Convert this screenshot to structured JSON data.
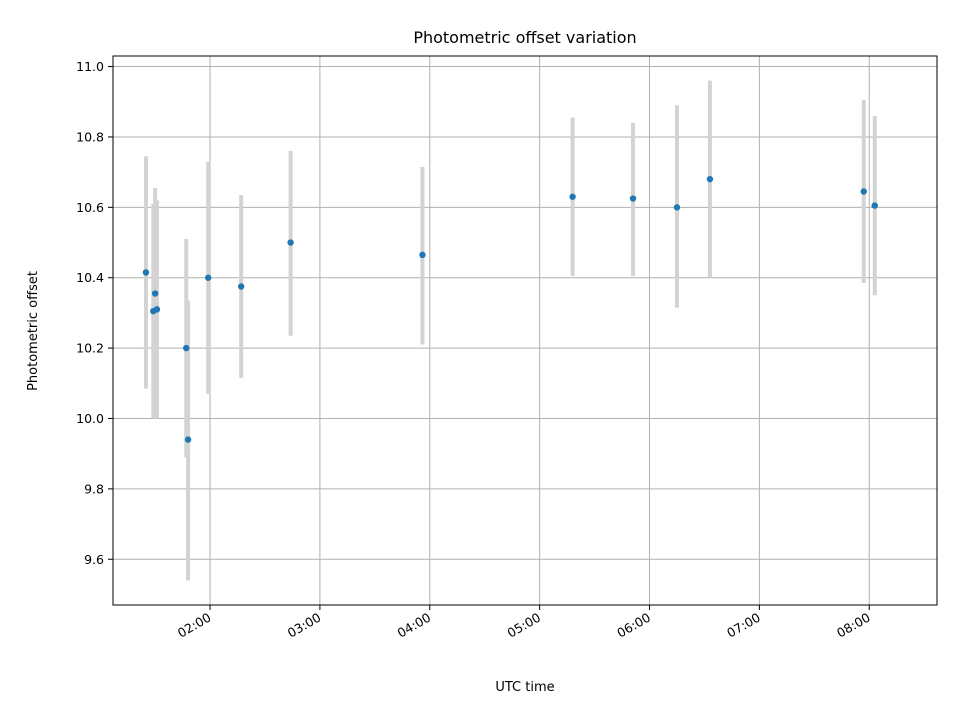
{
  "chart_data": {
    "type": "scatter",
    "title": "Photometric offset variation",
    "xlabel": "UTC time",
    "ylabel": "Photometric offset",
    "grid": true,
    "legend": "none",
    "xlim": [
      "01:07",
      "08:37"
    ],
    "ylim": [
      9.47,
      11.03
    ],
    "x_ticks": [
      "02:00",
      "03:00",
      "04:00",
      "05:00",
      "06:00",
      "07:00",
      "08:00"
    ],
    "y_ticks": [
      "9.6",
      "9.8",
      "10.0",
      "10.2",
      "10.4",
      "10.6",
      "10.8",
      "11.0"
    ],
    "point_color": "#1f77b4",
    "errorbar_color": "#d3d3d3",
    "points": [
      {
        "x": "01:25",
        "y": 10.415,
        "ylow": 10.085,
        "yhigh": 10.745
      },
      {
        "x": "01:29",
        "y": 10.305,
        "ylow": 10.0,
        "yhigh": 10.61
      },
      {
        "x": "01:30",
        "y": 10.355,
        "ylow": 10.0,
        "yhigh": 10.655
      },
      {
        "x": "01:31",
        "y": 10.31,
        "ylow": 10.0,
        "yhigh": 10.62
      },
      {
        "x": "01:47",
        "y": 10.2,
        "ylow": 9.89,
        "yhigh": 10.51
      },
      {
        "x": "01:48",
        "y": 9.94,
        "ylow": 9.54,
        "yhigh": 10.335
      },
      {
        "x": "01:59",
        "y": 10.4,
        "ylow": 10.07,
        "yhigh": 10.73
      },
      {
        "x": "02:17",
        "y": 10.375,
        "ylow": 10.115,
        "yhigh": 10.635
      },
      {
        "x": "02:44",
        "y": 10.5,
        "ylow": 10.235,
        "yhigh": 10.76
      },
      {
        "x": "03:56",
        "y": 10.465,
        "ylow": 10.21,
        "yhigh": 10.715
      },
      {
        "x": "05:18",
        "y": 10.63,
        "ylow": 10.405,
        "yhigh": 10.855
      },
      {
        "x": "05:51",
        "y": 10.625,
        "ylow": 10.405,
        "yhigh": 10.84
      },
      {
        "x": "06:15",
        "y": 10.6,
        "ylow": 10.315,
        "yhigh": 10.89
      },
      {
        "x": "06:33",
        "y": 10.68,
        "ylow": 10.4,
        "yhigh": 10.96
      },
      {
        "x": "07:57",
        "y": 10.645,
        "ylow": 10.385,
        "yhigh": 10.905
      },
      {
        "x": "08:03",
        "y": 10.605,
        "ylow": 10.35,
        "yhigh": 10.86
      }
    ]
  }
}
